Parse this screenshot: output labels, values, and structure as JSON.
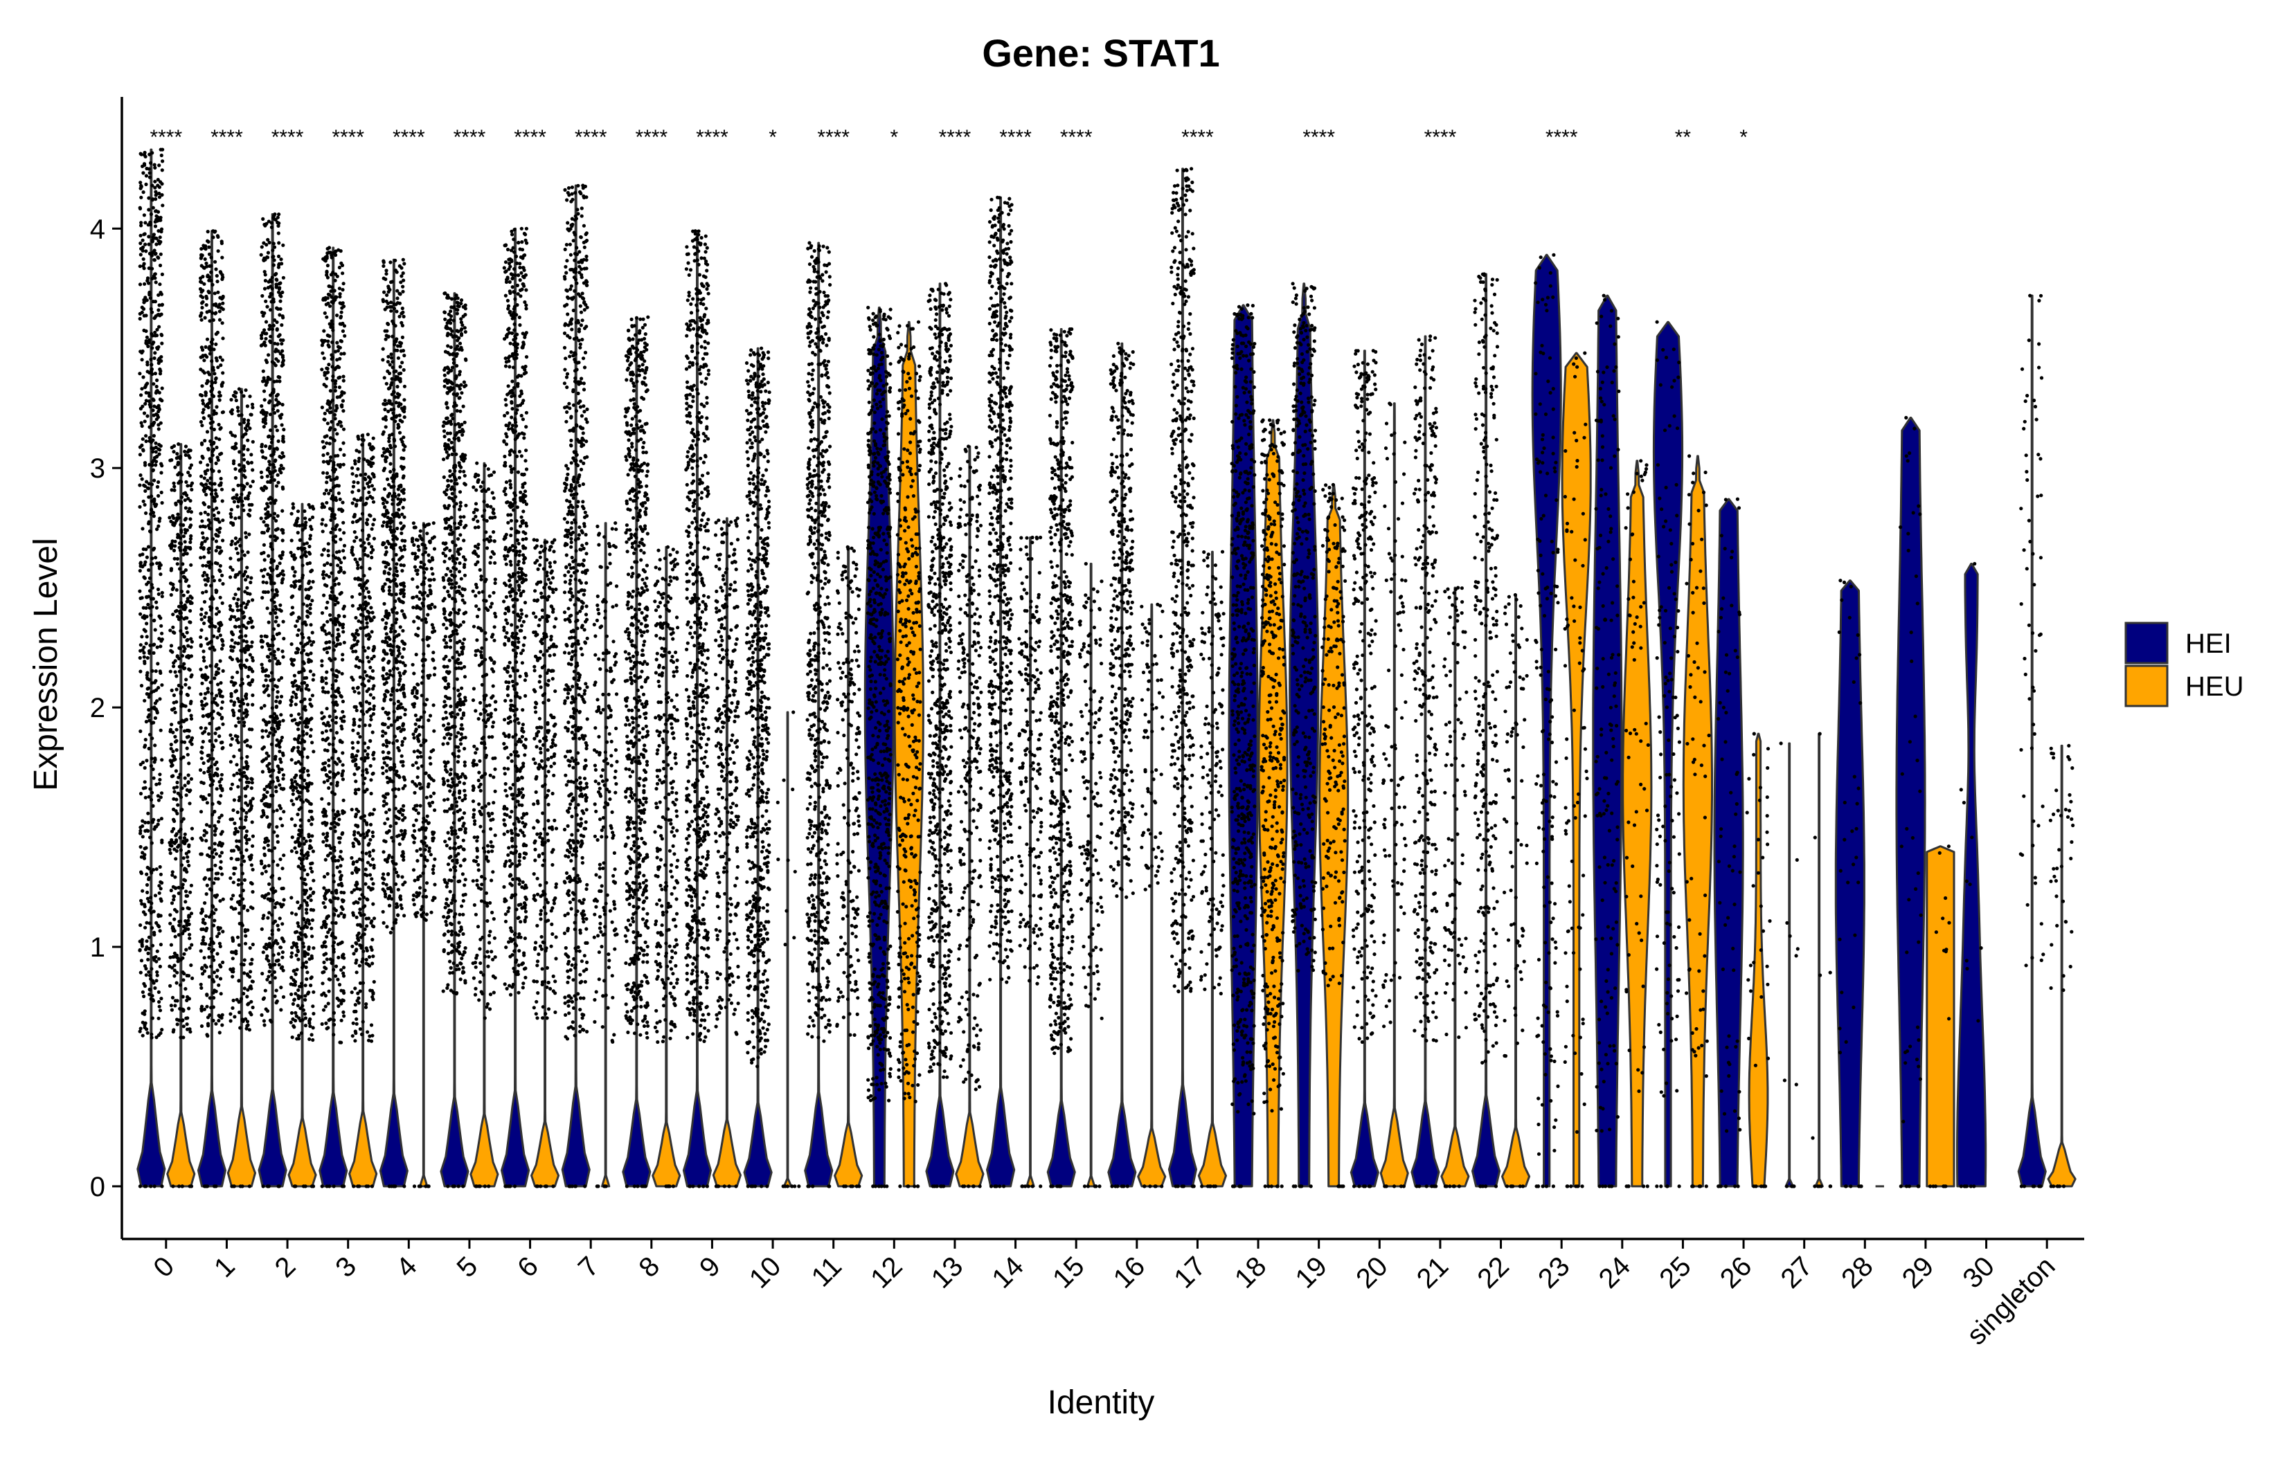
{
  "chart_data": {
    "type": "violin",
    "title": "Gene: STAT1",
    "xlabel": "Identity",
    "ylabel": "Expression Level",
    "ylim": [
      -0.22,
      4.55
    ],
    "yticks": [
      0,
      1,
      2,
      3,
      4
    ],
    "categories": [
      "0",
      "1",
      "2",
      "3",
      "4",
      "5",
      "6",
      "7",
      "8",
      "9",
      "10",
      "11",
      "12",
      "13",
      "14",
      "15",
      "16",
      "17",
      "18",
      "19",
      "20",
      "21",
      "22",
      "23",
      "24",
      "25",
      "26",
      "27",
      "28",
      "29",
      "30",
      "singleton"
    ],
    "significance": [
      "****",
      "****",
      "****",
      "****",
      "****",
      "****",
      "****",
      "****",
      "****",
      "****",
      "*",
      "****",
      "*",
      "****",
      "****",
      "****",
      "",
      "****",
      "",
      "****",
      "",
      "****",
      "",
      "****",
      "",
      "**",
      "*",
      "",
      "",
      "",
      "",
      ""
    ],
    "legend": {
      "position": "right",
      "entries": [
        {
          "name": "HEI",
          "color": "#00007F"
        },
        {
          "name": "HEU",
          "color": "#FFA500"
        }
      ]
    },
    "grid": false,
    "series": [
      {
        "name": "HEI",
        "color": "#00007F",
        "violins": [
          {
            "max": 4.33,
            "n": 1400,
            "shape": "spike",
            "dots_min": 0.62
          },
          {
            "max": 3.99,
            "n": 1400,
            "shape": "spike",
            "dots_min": 0.62
          },
          {
            "max": 4.06,
            "n": 1200,
            "shape": "spike",
            "dots_min": 0.65
          },
          {
            "max": 3.92,
            "n": 1200,
            "shape": "spike",
            "dots_min": 0.6
          },
          {
            "max": 3.87,
            "n": 1000,
            "shape": "spike",
            "dots_min": 1.05
          },
          {
            "max": 3.73,
            "n": 1200,
            "shape": "spike",
            "dots_min": 0.8
          },
          {
            "max": 4.0,
            "n": 1100,
            "shape": "spike",
            "dots_min": 0.8
          },
          {
            "max": 4.18,
            "n": 1200,
            "shape": "spike",
            "dots_min": 0.6
          },
          {
            "max": 3.63,
            "n": 900,
            "shape": "spike",
            "dots_min": 0.6
          },
          {
            "max": 3.99,
            "n": 900,
            "shape": "spike",
            "dots_min": 0.6
          },
          {
            "max": 3.5,
            "n": 700,
            "shape": "spike",
            "dots_min": 0.5
          },
          {
            "max": 3.94,
            "n": 700,
            "shape": "spike",
            "dots_min": 0.6
          },
          {
            "max": 3.67,
            "n": 900,
            "shape": "mid",
            "dots_min": 0.35
          },
          {
            "max": 3.77,
            "n": 900,
            "shape": "spike",
            "dots_min": 0.45
          },
          {
            "max": 4.13,
            "n": 700,
            "shape": "spike",
            "dots_min": 0.85
          },
          {
            "max": 3.58,
            "n": 600,
            "shape": "spike",
            "dots_min": 0.55
          },
          {
            "max": 3.52,
            "n": 400,
            "shape": "spike",
            "dots_min": 1.2
          },
          {
            "max": 4.25,
            "n": 500,
            "shape": "spike",
            "dots_min": 0.8
          },
          {
            "max": 3.68,
            "n": 600,
            "shape": "wide",
            "dots_min": 0.3
          },
          {
            "max": 3.77,
            "n": 400,
            "shape": "mid",
            "dots_min": 0.9
          },
          {
            "max": 3.49,
            "n": 300,
            "shape": "spike",
            "dots_min": 0.6
          },
          {
            "max": 3.55,
            "n": 300,
            "shape": "spike",
            "dots_min": 0.6
          },
          {
            "max": 3.81,
            "n": 300,
            "shape": "spike",
            "dots_min": 0.5
          },
          {
            "max": 3.89,
            "n": 150,
            "shape": "top",
            "dots_min": 0.1
          },
          {
            "max": 3.72,
            "n": 150,
            "shape": "wide",
            "dots_min": 0.2
          },
          {
            "max": 3.61,
            "n": 120,
            "shape": "top",
            "dots_min": 0.2
          },
          {
            "max": 2.87,
            "n": 60,
            "shape": "wide",
            "dots_min": 0.2
          },
          {
            "max": 1.85,
            "n": 8,
            "shape": "flat",
            "dots_min": 0.0
          },
          {
            "max": 2.53,
            "n": 30,
            "shape": "wide",
            "dots_min": 0.5
          },
          {
            "max": 3.21,
            "n": 40,
            "shape": "wide",
            "dots_min": 0.2
          },
          {
            "max": 2.6,
            "n": 10,
            "shape": "vase",
            "dots_min": 0.5
          },
          {
            "max": 3.72,
            "n": 60,
            "shape": "spike",
            "dots_min": 0.8
          }
        ]
      },
      {
        "name": "HEU",
        "color": "#FFA500",
        "violins": [
          {
            "max": 3.1,
            "n": 500,
            "shape": "spike",
            "dots_min": 0.62
          },
          {
            "max": 3.33,
            "n": 500,
            "shape": "spike",
            "dots_min": 0.65
          },
          {
            "max": 2.85,
            "n": 500,
            "shape": "spike",
            "dots_min": 0.6
          },
          {
            "max": 3.14,
            "n": 500,
            "shape": "spike",
            "dots_min": 0.6
          },
          {
            "max": 2.77,
            "n": 300,
            "shape": "flat",
            "dots_min": 1.1
          },
          {
            "max": 3.02,
            "n": 300,
            "shape": "spike",
            "dots_min": 0.7
          },
          {
            "max": 2.7,
            "n": 300,
            "shape": "spike",
            "dots_min": 0.7
          },
          {
            "max": 2.77,
            "n": 200,
            "shape": "flat",
            "dots_min": 0.6
          },
          {
            "max": 2.67,
            "n": 300,
            "shape": "spike",
            "dots_min": 0.6
          },
          {
            "max": 2.79,
            "n": 300,
            "shape": "spike",
            "dots_min": 0.6
          },
          {
            "max": 1.98,
            "n": 10,
            "shape": "flat",
            "dots_min": 0.5
          },
          {
            "max": 2.67,
            "n": 200,
            "shape": "spike",
            "dots_min": 0.6
          },
          {
            "max": 3.61,
            "n": 400,
            "shape": "mid",
            "dots_min": 0.35
          },
          {
            "max": 3.09,
            "n": 300,
            "shape": "spike",
            "dots_min": 0.4
          },
          {
            "max": 2.71,
            "n": 200,
            "shape": "flat",
            "dots_min": 0.8
          },
          {
            "max": 2.6,
            "n": 150,
            "shape": "flat",
            "dots_min": 0.7
          },
          {
            "max": 2.43,
            "n": 80,
            "shape": "spike",
            "dots_min": 1.2
          },
          {
            "max": 2.65,
            "n": 150,
            "shape": "spike",
            "dots_min": 0.8
          },
          {
            "max": 3.2,
            "n": 400,
            "shape": "mid",
            "dots_min": 0.3
          },
          {
            "max": 2.93,
            "n": 200,
            "shape": "mid",
            "dots_min": 0.8
          },
          {
            "max": 3.27,
            "n": 100,
            "shape": "spike",
            "dots_min": 0.6
          },
          {
            "max": 2.5,
            "n": 100,
            "shape": "spike",
            "dots_min": 0.6
          },
          {
            "max": 2.47,
            "n": 80,
            "shape": "spike",
            "dots_min": 0.5
          },
          {
            "max": 3.48,
            "n": 80,
            "shape": "top",
            "dots_min": 0.2
          },
          {
            "max": 3.03,
            "n": 60,
            "shape": "mid",
            "dots_min": 0.3
          },
          {
            "max": 3.05,
            "n": 60,
            "shape": "mid",
            "dots_min": 0.3
          },
          {
            "max": 1.89,
            "n": 30,
            "shape": "low",
            "dots_min": 0.2
          },
          {
            "max": 1.89,
            "n": 5,
            "shape": "flat",
            "dots_min": 0.0
          },
          {
            "max": 0.0,
            "n": 0,
            "shape": "flat",
            "dots_min": 0.0
          },
          {
            "max": 1.42,
            "n": 10,
            "shape": "block",
            "dots_min": 0.5
          },
          {
            "max": 0.0,
            "n": 0,
            "shape": "none",
            "dots_min": 0.0
          },
          {
            "max": 1.84,
            "n": 40,
            "shape": "spike",
            "dots_min": 0.8
          }
        ]
      }
    ]
  }
}
